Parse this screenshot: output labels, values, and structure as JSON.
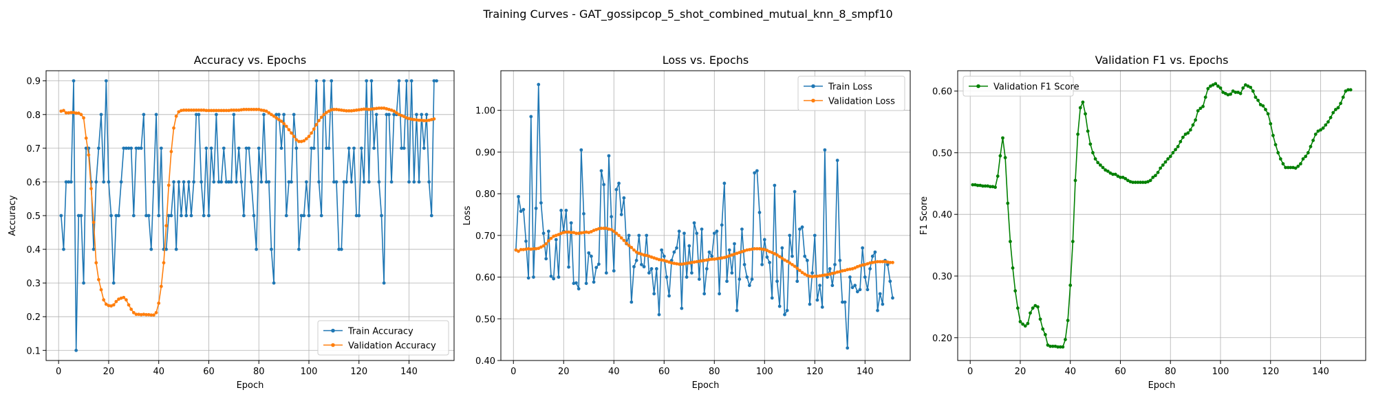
{
  "figure": {
    "suptitle": "Training Curves - GAT_gossipcop_5_shot_combined_mutual_knn_8_smpf10"
  },
  "chart_data": [
    {
      "type": "line",
      "title": "Accuracy vs. Epochs",
      "xlabel": "Epoch",
      "ylabel": "Accuracy",
      "xlim": [
        -5,
        158
      ],
      "ylim": [
        0.07,
        0.93
      ],
      "xticks": [
        0,
        20,
        40,
        60,
        80,
        100,
        120,
        140
      ],
      "yticks": [
        0.1,
        0.2,
        0.3,
        0.4,
        0.5,
        0.6,
        0.7,
        0.8,
        0.9
      ],
      "grid": true,
      "legend": "lower-right",
      "series": [
        {
          "name": "Train Accuracy",
          "color": "#1f77b4",
          "x_start": 1,
          "values": [
            0.5,
            0.4,
            0.6,
            0.6,
            0.6,
            0.9,
            0.1,
            0.5,
            0.5,
            0.3,
            0.7,
            0.7,
            0.6,
            0.4,
            0.6,
            0.7,
            0.8,
            0.6,
            0.9,
            0.6,
            0.5,
            0.3,
            0.5,
            0.5,
            0.6,
            0.7,
            0.7,
            0.7,
            0.7,
            0.5,
            0.7,
            0.7,
            0.7,
            0.8,
            0.5,
            0.5,
            0.4,
            0.6,
            0.8,
            0.5,
            0.7,
            0.4,
            0.4,
            0.5,
            0.5,
            0.6,
            0.4,
            0.6,
            0.5,
            0.6,
            0.5,
            0.6,
            0.5,
            0.6,
            0.8,
            0.8,
            0.6,
            0.5,
            0.7,
            0.5,
            0.7,
            0.6,
            0.8,
            0.6,
            0.6,
            0.7,
            0.6,
            0.6,
            0.6,
            0.8,
            0.6,
            0.7,
            0.6,
            0.5,
            0.7,
            0.7,
            0.6,
            0.5,
            0.4,
            0.7,
            0.6,
            0.8,
            0.6,
            0.6,
            0.4,
            0.3,
            0.8,
            0.8,
            0.7,
            0.8,
            0.5,
            0.6,
            0.6,
            0.8,
            0.7,
            0.4,
            0.5,
            0.5,
            0.6,
            0.5,
            0.7,
            0.7,
            0.9,
            0.6,
            0.5,
            0.9,
            0.7,
            0.7,
            0.9,
            0.6,
            0.6,
            0.4,
            0.4,
            0.6,
            0.6,
            0.7,
            0.6,
            0.7,
            0.5,
            0.5,
            0.7,
            0.6,
            0.9,
            0.6,
            0.9,
            0.7,
            0.8,
            0.6,
            0.5,
            0.3,
            0.8,
            0.8,
            0.6,
            0.8,
            0.8,
            0.9,
            0.7,
            0.7,
            0.9,
            0.6,
            0.9,
            0.6,
            0.8,
            0.6,
            0.8,
            0.7,
            0.8,
            0.6,
            0.5,
            0.9,
            0.9
          ]
        },
        {
          "name": "Validation Accuracy",
          "color": "#ff7f0e",
          "x_start": 1,
          "values": [
            0.81,
            0.812,
            0.805,
            0.805,
            0.806,
            0.806,
            0.804,
            0.804,
            0.8,
            0.79,
            0.73,
            0.68,
            0.58,
            0.48,
            0.36,
            0.31,
            0.28,
            0.25,
            0.237,
            0.233,
            0.232,
            0.235,
            0.245,
            0.252,
            0.255,
            0.257,
            0.25,
            0.235,
            0.222,
            0.212,
            0.207,
            0.207,
            0.206,
            0.207,
            0.206,
            0.206,
            0.205,
            0.205,
            0.212,
            0.24,
            0.29,
            0.36,
            0.47,
            0.59,
            0.69,
            0.76,
            0.795,
            0.808,
            0.812,
            0.813,
            0.813,
            0.813,
            0.813,
            0.813,
            0.813,
            0.813,
            0.813,
            0.813,
            0.812,
            0.812,
            0.812,
            0.812,
            0.812,
            0.812,
            0.812,
            0.812,
            0.812,
            0.812,
            0.813,
            0.813,
            0.813,
            0.813,
            0.814,
            0.815,
            0.815,
            0.815,
            0.815,
            0.815,
            0.815,
            0.815,
            0.813,
            0.812,
            0.81,
            0.805,
            0.8,
            0.795,
            0.79,
            0.785,
            0.78,
            0.773,
            0.765,
            0.755,
            0.745,
            0.735,
            0.725,
            0.72,
            0.72,
            0.722,
            0.728,
            0.735,
            0.745,
            0.757,
            0.77,
            0.782,
            0.792,
            0.8,
            0.806,
            0.81,
            0.814,
            0.815,
            0.815,
            0.814,
            0.813,
            0.812,
            0.811,
            0.811,
            0.811,
            0.812,
            0.813,
            0.814,
            0.815,
            0.816,
            0.816,
            0.815,
            0.816,
            0.817,
            0.818,
            0.819,
            0.819,
            0.819,
            0.817,
            0.815,
            0.813,
            0.81,
            0.805,
            0.8,
            0.797,
            0.794,
            0.79,
            0.788,
            0.786,
            0.785,
            0.784,
            0.783,
            0.783,
            0.782,
            0.782,
            0.783,
            0.785,
            0.787
          ]
        }
      ]
    },
    {
      "type": "line",
      "title": "Loss vs. Epochs",
      "xlabel": "Epoch",
      "ylabel": "Loss",
      "xlim": [
        -5,
        158
      ],
      "ylim": [
        0.4,
        1.095
      ],
      "xticks": [
        0,
        20,
        40,
        60,
        80,
        100,
        120,
        140
      ],
      "yticks": [
        0.4,
        0.5,
        0.6,
        0.7,
        0.8,
        0.9,
        1.0
      ],
      "grid": true,
      "legend": "upper-right",
      "series": [
        {
          "name": "Train Loss",
          "color": "#1f77b4",
          "x_start": 1,
          "values": [
            0.665,
            0.793,
            0.758,
            0.762,
            0.686,
            0.598,
            0.985,
            0.6,
            0.765,
            1.062,
            0.778,
            0.705,
            0.644,
            0.71,
            0.602,
            0.596,
            0.69,
            0.6,
            0.76,
            0.71,
            0.76,
            0.624,
            0.73,
            0.585,
            0.586,
            0.572,
            0.905,
            0.752,
            0.585,
            0.658,
            0.65,
            0.588,
            0.623,
            0.631,
            0.855,
            0.822,
            0.61,
            0.891,
            0.745,
            0.615,
            0.81,
            0.825,
            0.75,
            0.79,
            0.68,
            0.7,
            0.54,
            0.625,
            0.64,
            0.7,
            0.63,
            0.625,
            0.7,
            0.61,
            0.62,
            0.56,
            0.62,
            0.51,
            0.665,
            0.65,
            0.6,
            0.555,
            0.64,
            0.66,
            0.67,
            0.71,
            0.525,
            0.705,
            0.6,
            0.675,
            0.61,
            0.73,
            0.705,
            0.595,
            0.715,
            0.56,
            0.62,
            0.66,
            0.65,
            0.705,
            0.71,
            0.56,
            0.725,
            0.825,
            0.59,
            0.665,
            0.61,
            0.68,
            0.52,
            0.595,
            0.715,
            0.63,
            0.6,
            0.58,
            0.595,
            0.85,
            0.855,
            0.755,
            0.63,
            0.69,
            0.648,
            0.635,
            0.55,
            0.82,
            0.59,
            0.53,
            0.67,
            0.51,
            0.52,
            0.7,
            0.65,
            0.805,
            0.59,
            0.715,
            0.72,
            0.65,
            0.64,
            0.535,
            0.61,
            0.7,
            0.545,
            0.58,
            0.528,
            0.905,
            0.6,
            0.62,
            0.58,
            0.63,
            0.88,
            0.64,
            0.54,
            0.54,
            0.43,
            0.6,
            0.575,
            0.58,
            0.565,
            0.57,
            0.67,
            0.6,
            0.57,
            0.62,
            0.65,
            0.66,
            0.52,
            0.56,
            0.535,
            0.64,
            0.63,
            0.59,
            0.55
          ]
        },
        {
          "name": "Validation Loss",
          "color": "#ff7f0e",
          "x_start": 1,
          "values": [
            0.665,
            0.662,
            0.666,
            0.666,
            0.667,
            0.668,
            0.667,
            0.668,
            0.668,
            0.669,
            0.672,
            0.675,
            0.68,
            0.687,
            0.693,
            0.698,
            0.7,
            0.702,
            0.705,
            0.707,
            0.708,
            0.708,
            0.707,
            0.707,
            0.705,
            0.705,
            0.706,
            0.707,
            0.708,
            0.707,
            0.709,
            0.712,
            0.714,
            0.716,
            0.717,
            0.717,
            0.717,
            0.715,
            0.714,
            0.71,
            0.705,
            0.7,
            0.694,
            0.688,
            0.681,
            0.676,
            0.671,
            0.665,
            0.66,
            0.657,
            0.655,
            0.653,
            0.652,
            0.65,
            0.648,
            0.646,
            0.644,
            0.642,
            0.641,
            0.64,
            0.638,
            0.636,
            0.634,
            0.633,
            0.632,
            0.631,
            0.631,
            0.632,
            0.633,
            0.634,
            0.635,
            0.636,
            0.637,
            0.638,
            0.639,
            0.64,
            0.641,
            0.642,
            0.643,
            0.643,
            0.644,
            0.645,
            0.646,
            0.647,
            0.649,
            0.651,
            0.653,
            0.655,
            0.657,
            0.659,
            0.661,
            0.663,
            0.665,
            0.666,
            0.667,
            0.668,
            0.668,
            0.668,
            0.667,
            0.666,
            0.664,
            0.661,
            0.659,
            0.656,
            0.653,
            0.649,
            0.645,
            0.641,
            0.638,
            0.634,
            0.63,
            0.626,
            0.621,
            0.616,
            0.611,
            0.607,
            0.604,
            0.602,
            0.601,
            0.602,
            0.602,
            0.603,
            0.604,
            0.605,
            0.606,
            0.607,
            0.609,
            0.61,
            0.612,
            0.613,
            0.615,
            0.616,
            0.618,
            0.619,
            0.62,
            0.622,
            0.625,
            0.627,
            0.629,
            0.63,
            0.632,
            0.634,
            0.635,
            0.636,
            0.637,
            0.637,
            0.637,
            0.637,
            0.636,
            0.635,
            0.635
          ]
        }
      ]
    },
    {
      "type": "line",
      "title": "Validation F1 vs. Epochs",
      "xlabel": "Epoch",
      "ylabel": "F1 Score",
      "xlim": [
        -5,
        158
      ],
      "ylim": [
        0.163,
        0.633
      ],
      "xticks": [
        0,
        20,
        40,
        60,
        80,
        100,
        120,
        140
      ],
      "yticks": [
        0.2,
        0.3,
        0.4,
        0.5,
        0.6
      ],
      "grid": true,
      "legend": "upper-left",
      "series": [
        {
          "name": "Validation F1 Score",
          "color": "#008000",
          "x_start": 1,
          "values": [
            0.448,
            0.448,
            0.447,
            0.447,
            0.446,
            0.446,
            0.446,
            0.445,
            0.445,
            0.444,
            0.462,
            0.495,
            0.524,
            0.492,
            0.418,
            0.356,
            0.313,
            0.276,
            0.248,
            0.226,
            0.222,
            0.219,
            0.223,
            0.24,
            0.248,
            0.252,
            0.25,
            0.23,
            0.214,
            0.205,
            0.188,
            0.186,
            0.186,
            0.186,
            0.185,
            0.185,
            0.185,
            0.197,
            0.228,
            0.285,
            0.356,
            0.455,
            0.53,
            0.573,
            0.582,
            0.563,
            0.535,
            0.514,
            0.5,
            0.49,
            0.484,
            0.48,
            0.476,
            0.472,
            0.47,
            0.467,
            0.465,
            0.465,
            0.462,
            0.46,
            0.46,
            0.458,
            0.455,
            0.453,
            0.452,
            0.452,
            0.452,
            0.452,
            0.452,
            0.452,
            0.453,
            0.455,
            0.46,
            0.463,
            0.468,
            0.475,
            0.48,
            0.485,
            0.49,
            0.494,
            0.5,
            0.505,
            0.51,
            0.518,
            0.525,
            0.53,
            0.532,
            0.537,
            0.545,
            0.553,
            0.568,
            0.572,
            0.575,
            0.59,
            0.604,
            0.608,
            0.61,
            0.612,
            0.608,
            0.605,
            0.598,
            0.596,
            0.594,
            0.595,
            0.6,
            0.598,
            0.598,
            0.596,
            0.605,
            0.61,
            0.608,
            0.606,
            0.6,
            0.59,
            0.585,
            0.578,
            0.576,
            0.57,
            0.563,
            0.547,
            0.528,
            0.513,
            0.5,
            0.49,
            0.482,
            0.476,
            0.476,
            0.476,
            0.476,
            0.475,
            0.478,
            0.482,
            0.49,
            0.494,
            0.5,
            0.51,
            0.52,
            0.53,
            0.535,
            0.537,
            0.54,
            0.545,
            0.55,
            0.557,
            0.565,
            0.57,
            0.573,
            0.58,
            0.59,
            0.6,
            0.602,
            0.602
          ]
        }
      ]
    }
  ]
}
